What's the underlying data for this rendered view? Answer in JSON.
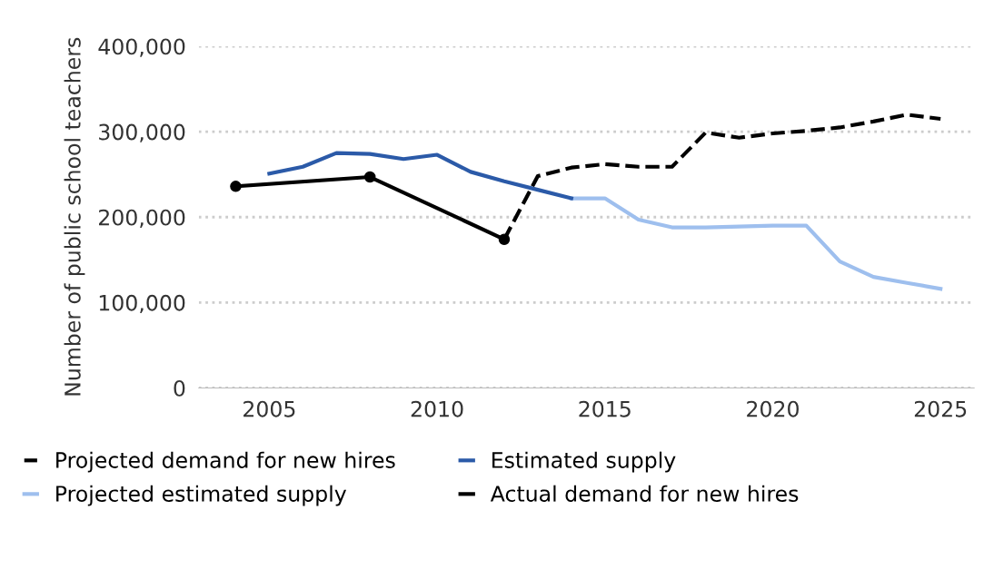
{
  "chart_data": {
    "type": "line",
    "ylabel": "Number of public school teachers",
    "xlim": [
      2002.9,
      2026
    ],
    "xticks": [
      2005,
      2010,
      2015,
      2020,
      2025
    ],
    "ylim": [
      0,
      400000
    ],
    "yticks": [
      0,
      {
        "value": 100000,
        "label": "100,000"
      },
      {
        "value": 200000,
        "label": "200,000"
      },
      {
        "value": 300000,
        "label": "300,000"
      },
      {
        "value": 400000,
        "label": "400,000"
      }
    ],
    "grid": "y",
    "legend": "bottom",
    "series": [
      {
        "name": "Projected demand for new hires",
        "color": "#000000",
        "line_style": "dashed",
        "marker": "none",
        "x": [
          2012,
          2013,
          2014,
          2015,
          2016,
          2017,
          2018,
          2019,
          2020,
          2021,
          2022,
          2023,
          2024,
          2025
        ],
        "values": [
          174000,
          248000,
          258000,
          262000,
          259000,
          259000,
          299000,
          293000,
          298000,
          301000,
          305000,
          312000,
          320000,
          315000
        ]
      },
      {
        "name": "Projected estimated supply",
        "color": "#9ebfee",
        "line_style": "solid",
        "marker": "none",
        "x": [
          2014,
          2015,
          2016,
          2017,
          2018,
          2019,
          2020,
          2021,
          2022,
          2023,
          2024,
          2025
        ],
        "values": [
          222000,
          222000,
          197000,
          188000,
          188000,
          189000,
          190000,
          190000,
          148000,
          130000,
          123000,
          116000
        ]
      },
      {
        "name": "Estimated supply",
        "color": "#2b5aa8",
        "line_style": "solid",
        "marker": "none",
        "x": [
          2005,
          2006,
          2007,
          2008,
          2009,
          2010,
          2011,
          2012,
          2013,
          2014
        ],
        "values": [
          251000,
          259000,
          275000,
          274000,
          268000,
          273000,
          253000,
          242000,
          232000,
          222000
        ]
      },
      {
        "name": "Actual demand for new hires",
        "color": "#000000",
        "line_style": "solid",
        "marker": "circle",
        "x": [
          2004,
          2008,
          2012
        ],
        "values": [
          236000,
          247000,
          174000
        ]
      }
    ]
  }
}
